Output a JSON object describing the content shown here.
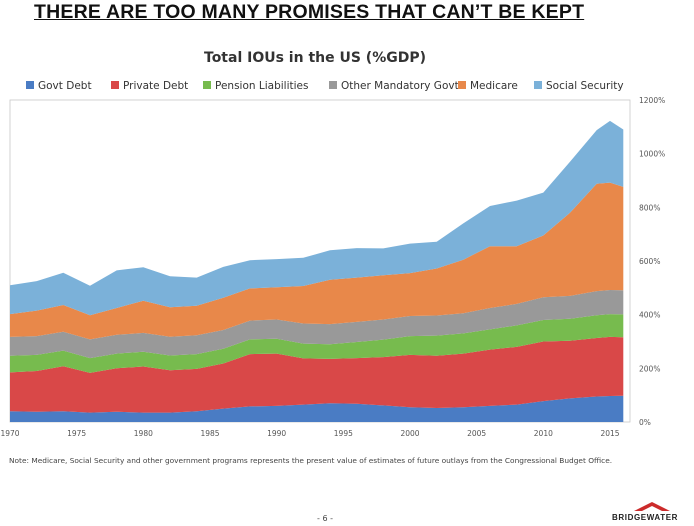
{
  "slide": {
    "headline": "THERE ARE TOO MANY PROMISES THAT CAN’T BE KEPT",
    "footnote": "Note: Medicare, Social Security and other government programs represents the present value of estimates of future outlays from the Congressional Budget Office.",
    "page_number": "- 6 -",
    "brand": "BRIDGEWATER",
    "brand_logo_color": "#cc2b2b"
  },
  "chart_data": {
    "type": "area",
    "stacked": true,
    "title": "Total IOUs in the US (%GDP)",
    "legend_position": "top",
    "xlim": [
      1970,
      2016.5
    ],
    "ylim": [
      0,
      1200
    ],
    "x_ticks": [
      1970,
      1975,
      1980,
      1985,
      1990,
      1995,
      2000,
      2005,
      2010,
      2015
    ],
    "y_ticks": [
      0,
      200,
      400,
      600,
      800,
      1000,
      1200
    ],
    "y_tick_labels": [
      "0%",
      "200%",
      "400%",
      "600%",
      "800%",
      "1000%",
      "1200%"
    ],
    "y_axis_side": "right",
    "x": [
      1970,
      1972,
      1974,
      1976,
      1978,
      1980,
      1982,
      1984,
      1986,
      1988,
      1990,
      1992,
      1994,
      1996,
      1998,
      2000,
      2002,
      2004,
      2006,
      2008,
      2010,
      2012,
      2014,
      2015,
      2016
    ],
    "series": [
      {
        "name": "Govt Debt",
        "color": "#4a7cc4",
        "values": [
          40,
          38,
          40,
          35,
          38,
          35,
          35,
          40,
          50,
          58,
          60,
          65,
          70,
          68,
          62,
          55,
          52,
          55,
          60,
          65,
          78,
          88,
          95,
          97,
          98
        ]
      },
      {
        "name": "Private Debt",
        "color": "#d94848",
        "values": [
          145,
          152,
          168,
          148,
          162,
          172,
          158,
          158,
          168,
          195,
          195,
          172,
          165,
          170,
          180,
          195,
          195,
          200,
          210,
          215,
          222,
          215,
          218,
          220,
          218
        ]
      },
      {
        "name": "Pension Liabilities",
        "color": "#77bb4e",
        "values": [
          62,
          60,
          58,
          55,
          55,
          55,
          55,
          55,
          55,
          55,
          55,
          55,
          55,
          60,
          65,
          70,
          75,
          75,
          75,
          80,
          80,
          82,
          85,
          85,
          85
        ]
      },
      {
        "name": "Other Mandatory Govt",
        "color": "#999999",
        "values": [
          70,
          70,
          70,
          70,
          70,
          70,
          70,
          70,
          70,
          70,
          72,
          75,
          75,
          75,
          75,
          75,
          75,
          75,
          80,
          80,
          85,
          85,
          90,
          90,
          90
        ]
      },
      {
        "name": "Medicare",
        "color": "#e8884a",
        "values": [
          85,
          95,
          100,
          90,
          100,
          120,
          110,
          110,
          120,
          120,
          120,
          140,
          165,
          165,
          165,
          160,
          175,
          200,
          230,
          215,
          230,
          310,
          400,
          400,
          385
        ]
      },
      {
        "name": "Social Security",
        "color": "#7bb1d9",
        "values": [
          108,
          110,
          120,
          110,
          140,
          125,
          115,
          105,
          115,
          105,
          105,
          105,
          110,
          110,
          100,
          110,
          100,
          135,
          150,
          170,
          160,
          190,
          200,
          230,
          214
        ]
      }
    ]
  }
}
